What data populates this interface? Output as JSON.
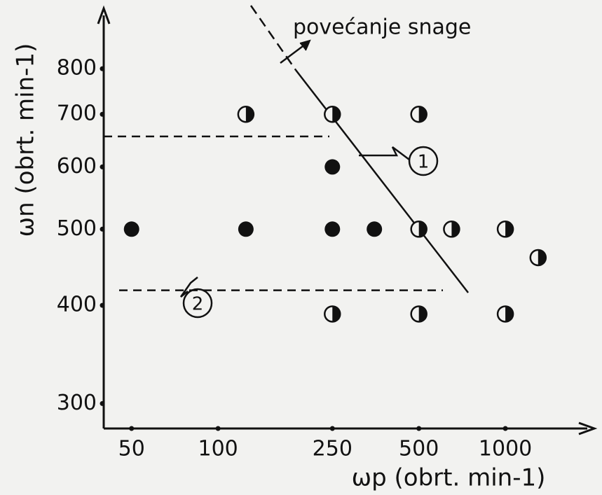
{
  "chart_data": {
    "type": "scatter",
    "xlabel": "ωp (obrt. min-1)",
    "ylabel": "ωn (obrt. min-1)",
    "log_x": true,
    "log_y": true,
    "xlim": [
      40,
      1950
    ],
    "ylim": [
      280,
      920
    ],
    "xticks": [
      50,
      100,
      250,
      500,
      1000
    ],
    "yticks": [
      300,
      400,
      500,
      600,
      700,
      800
    ],
    "series": [
      {
        "marker": "full",
        "color": "#111111",
        "x": [
          250,
          50,
          125,
          250,
          350
        ],
        "values": [
          600,
          500,
          500,
          500,
          500
        ]
      },
      {
        "marker": "half",
        "color": "#111111",
        "x": [
          125,
          250,
          500,
          500,
          650,
          1000,
          1300,
          250,
          500,
          1000
        ],
        "values": [
          700,
          700,
          700,
          500,
          500,
          500,
          460,
          390,
          390,
          390
        ]
      }
    ],
    "hlines": [
      656,
      418
    ],
    "annotations": [
      "povećanje snage",
      "1",
      "2"
    ]
  }
}
